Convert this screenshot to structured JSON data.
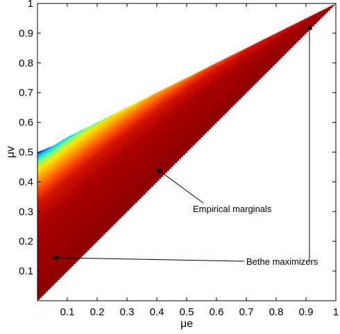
{
  "chart_data": {
    "type": "heatmap",
    "title": "",
    "xlabel": "μe",
    "ylabel": "μv",
    "xlim": [
      0,
      1
    ],
    "ylim": [
      0,
      1
    ],
    "xticks": [
      "0.1",
      "0.2",
      "0.3",
      "0.4",
      "0.5",
      "0.6",
      "0.7",
      "0.8",
      "0.9",
      "1"
    ],
    "yticks": [
      "0.1",
      "0.2",
      "0.3",
      "0.4",
      "0.5",
      "0.6",
      "0.7",
      "0.8",
      "0.9",
      "1"
    ],
    "region": {
      "lower_boundary": [
        [
          0,
          0
        ],
        [
          1,
          1
        ]
      ],
      "upper_boundary": [
        [
          0,
          0.5
        ],
        [
          0.05,
          0.52
        ],
        [
          0.1,
          0.55
        ],
        [
          0.2,
          0.6
        ],
        [
          0.3,
          0.65
        ],
        [
          0.4,
          0.7
        ],
        [
          0.5,
          0.75
        ],
        [
          0.6,
          0.8
        ],
        [
          0.7,
          0.85
        ],
        [
          0.8,
          0.9
        ],
        [
          0.9,
          0.95
        ],
        [
          1,
          1
        ]
      ],
      "colormap": "jet",
      "high_value_color": "#8b0000",
      "low_value_color": "#0033ff"
    },
    "annotations": [
      {
        "text": "Empirical marginals",
        "arrow_to": [
          0.4,
          0.45
        ]
      },
      {
        "text": "Bethe maximizers",
        "arrow_to": [
          0.05,
          0.145
        ]
      },
      {
        "text": "",
        "arrow_to": [
          0.91,
          0.93
        ]
      }
    ],
    "grid": false,
    "legend": "none"
  }
}
